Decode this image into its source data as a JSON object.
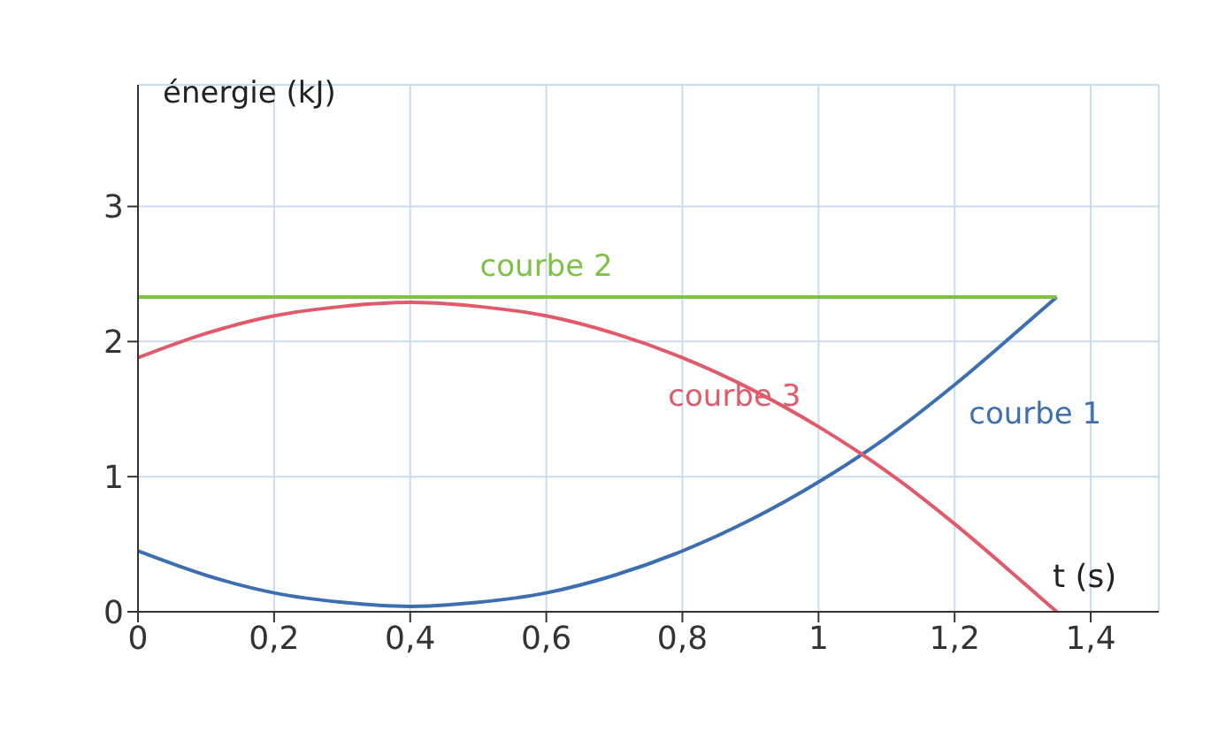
{
  "chart_data": {
    "type": "line",
    "xlabel": "t (s)",
    "ylabel": "énergie (kJ)",
    "x": [
      0,
      0.1,
      0.2,
      0.3,
      0.4,
      0.5,
      0.6,
      0.7,
      0.8,
      0.9,
      1.0,
      1.1,
      1.2,
      1.3,
      1.35
    ],
    "series": [
      {
        "name": "courbe 1",
        "color": "#3d6fb0",
        "values": [
          0.45,
          0.27,
          0.14,
          0.07,
          0.04,
          0.07,
          0.14,
          0.27,
          0.45,
          0.68,
          0.96,
          1.29,
          1.68,
          2.11,
          2.33
        ]
      },
      {
        "name": "courbe 2",
        "color": "#7dc242",
        "values": [
          2.33,
          2.33,
          2.33,
          2.33,
          2.33,
          2.33,
          2.33,
          2.33,
          2.33,
          2.33,
          2.33,
          2.33,
          2.33,
          2.33,
          2.33
        ]
      },
      {
        "name": "courbe 3",
        "color": "#e05a6a",
        "values": [
          1.88,
          2.06,
          2.19,
          2.26,
          2.29,
          2.26,
          2.19,
          2.06,
          1.88,
          1.65,
          1.37,
          1.04,
          0.65,
          0.22,
          0
        ]
      }
    ],
    "xlim": [
      0,
      1.5
    ],
    "ylim": [
      0,
      3.9
    ],
    "xticks": [
      0,
      {
        "value": 0.2,
        "label": "0,2"
      },
      {
        "value": 0.4,
        "label": "0,4"
      },
      {
        "value": 0.6,
        "label": "0,6"
      },
      {
        "value": 0.8,
        "label": "0,8"
      },
      1,
      {
        "value": 1.2,
        "label": "1,2"
      },
      {
        "value": 1.4,
        "label": "1,4"
      }
    ],
    "yticks": [
      0,
      1,
      2,
      3
    ],
    "grid": true,
    "legend": false
  }
}
